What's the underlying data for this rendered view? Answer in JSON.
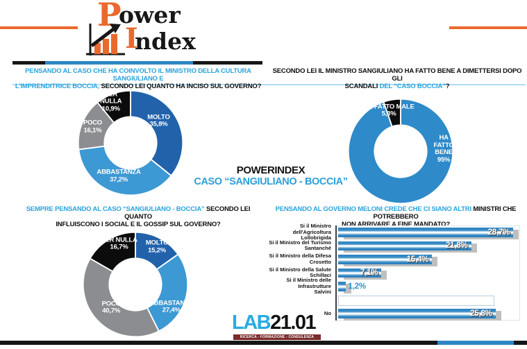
{
  "header": {
    "brand": {
      "word1_initial": "P",
      "word1_rest": "ower",
      "word2_initial": "I",
      "word2_rest": "ndex"
    }
  },
  "center_title": {
    "line1": "POWERINDEX",
    "line2": "CASO “SANGIULIANO - BOCCIA”"
  },
  "footer": {
    "brand_accent": "LAB",
    "brand_rest": "21.01",
    "tagline": "RICERCA - FORMAZIONE - CONSULENZA STRATEGICA"
  },
  "colors": {
    "accent_orange": "#E96A2D",
    "title_blue": "#29A3DD",
    "dark_blue": "#2262AB",
    "light_blue": "#3D99D4",
    "single_blue": "#2E8AC9",
    "gray": "#8B8D90",
    "black": "#0C0C0C",
    "bar_blue": "#2C84C2",
    "lab_blue": "#29ABE2",
    "tagline_red": "#7A2B2B"
  },
  "chart_data": [
    {
      "id": "incidenza-caso-governo",
      "type": "donut",
      "title_lines": [
        [
          {
            "text": "PENSANDO AL CASO CHE HA COINVOLTO IL MINISTRO DELLA CULTURA SANGIULIANO E",
            "color": "blue"
          }
        ],
        [
          {
            "text": "L'IMPRENDITRICE BOCCIA,",
            "color": "blue"
          },
          {
            "text": " SECONDO LEI QUANTO HA INCISO SUL GOVERNO?",
            "color": "black"
          }
        ]
      ],
      "segments": [
        {
          "label": "MOLTO",
          "value": 35.8,
          "display": "35,8%",
          "color": "#2262AB"
        },
        {
          "label": "ABBASTANZA",
          "value": 37.2,
          "display": "37,2%",
          "color": "#3D99D4"
        },
        {
          "label": "POCO",
          "value": 16.1,
          "display": "16,1%",
          "color": "#8B8D90"
        },
        {
          "label": "PER NULLA",
          "value": 10.9,
          "display": "10,9%",
          "color": "#0C0C0C"
        }
      ]
    },
    {
      "id": "dimissioni-sangiuliano",
      "type": "donut",
      "title_lines": [
        [
          {
            "text": "SECONDO LEI IL MINISTRO SANGIULIANO HA FATTO BENE A DIMETTERSI DOPO GLI",
            "color": "black"
          }
        ],
        [
          {
            "text": "SCANDALI ",
            "color": "black"
          },
          {
            "text": "DEL “CASO BOCCIA”",
            "color": "blue"
          },
          {
            "text": "?",
            "color": "black"
          }
        ]
      ],
      "segments": [
        {
          "label": "HA FATTO BENE",
          "value": 95,
          "display": "95%",
          "color": "#2E8AC9"
        },
        {
          "label": "HA FATTO MALE",
          "value": 5.3,
          "display": "5,3%",
          "color": "#0C0C0C"
        }
      ]
    },
    {
      "id": "influenza-social-gossip",
      "type": "donut",
      "title_lines": [
        [
          {
            "text": "SEMPRE PENSANDO AL CASO “SANGIULIANO - BOCCIA”",
            "color": "blue"
          },
          {
            "text": " SECONDO LEI QUANTO",
            "color": "black"
          }
        ],
        [
          {
            "text": "INFLUISCONO I SOCIAL E IL GOSSIP SUL GOVERNO?",
            "color": "black"
          }
        ]
      ],
      "segments": [
        {
          "label": "MOLTO",
          "value": 15.2,
          "display": "15,2%",
          "color": "#2262AB"
        },
        {
          "label": "ABBASTANZA",
          "value": 27.4,
          "display": "27,4%",
          "color": "#3D99D4"
        },
        {
          "label": "POCO",
          "value": 40.7,
          "display": "40,7%",
          "color": "#8B8D90"
        },
        {
          "label": "PER NULLA",
          "value": 16.7,
          "display": "16,7%",
          "color": "#0C0C0C"
        }
      ]
    },
    {
      "id": "ministri-fine-mandato",
      "type": "bar",
      "title_lines": [
        [
          {
            "text": "PENSANDO AL GOVERNO MELONI CREDE CHE CI SIANO ALTRI",
            "color": "blue"
          },
          {
            "text": " MINISTRI CHE POTREBBERO",
            "color": "black"
          }
        ],
        [
          {
            "text": "NON ARRIVARE A FINE MANDATO?",
            "color": "black"
          }
        ]
      ],
      "xmax": 30.5,
      "bars": [
        {
          "label": "Si il Ministro dell'Agricoltura\nLollobrigida",
          "value": 28.7,
          "display": "28,7%",
          "empty": false
        },
        {
          "label": "Si il Ministro del Turismo\nSantanché",
          "value": 21.8,
          "display": "21,8%",
          "empty": false
        },
        {
          "label": "Si il Ministro della Difesa\nCrosetto",
          "value": 15.4,
          "display": "15,4%",
          "empty": false
        },
        {
          "label": "Si il Ministro della Salute\nSchillaci",
          "value": 7.1,
          "display": "7,1%",
          "empty": false
        },
        {
          "label": "Si il Ministro delle Infrastrutture\nSalvini",
          "value": 1.2,
          "display": "1,2%",
          "empty": false
        },
        {
          "label": "",
          "value": 25.4,
          "display": "",
          "empty": true
        },
        {
          "label": "No",
          "value": 25.8,
          "display": "25,8%",
          "empty": false
        }
      ]
    }
  ]
}
